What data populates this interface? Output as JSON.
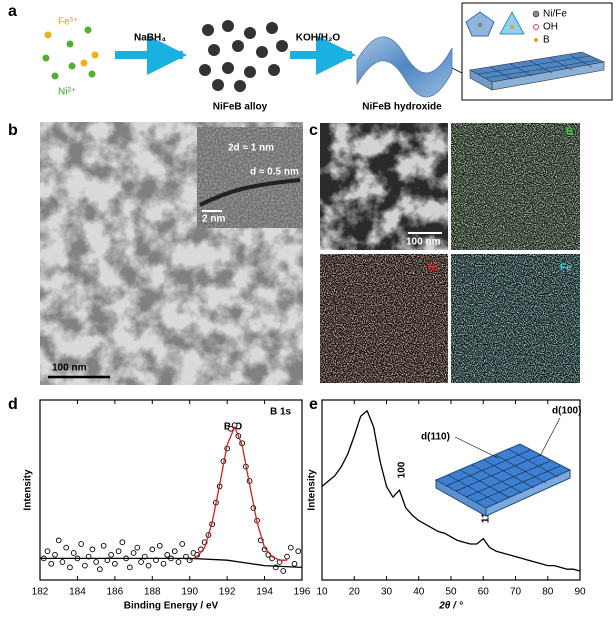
{
  "panel_a": {
    "label": "a",
    "ions": [
      "Fe³⁺",
      "Ni²⁺"
    ],
    "reagents": [
      "NaBH₄",
      "KOH/H₂O"
    ],
    "products": [
      "NiFeB alloy",
      "NiFeB hydroxide"
    ],
    "legend": [
      "Ni/Fe",
      "OH",
      "B"
    ]
  },
  "panel_b": {
    "label": "b",
    "inset_labels": [
      "2d ≈ 1 nm",
      "d ≈ 0.5 nm"
    ],
    "scale_bars": [
      "2 nm",
      "100 nm"
    ]
  },
  "panel_c": {
    "label": "c",
    "scale_bar": "100 nm",
    "maps": [
      "B",
      "Ni",
      "Fe"
    ]
  },
  "panel_labels": [
    "d",
    "e"
  ],
  "chart_data": [
    {
      "type": "scatter",
      "title": "B 1s",
      "x_label": "Binding Energy / eV",
      "y_label": "Intensity",
      "annotations": [
        "B-O"
      ],
      "xlim": [
        182,
        196
      ],
      "xticks": [
        182,
        184,
        186,
        188,
        190,
        192,
        194,
        196
      ],
      "ylim": [
        0,
        1
      ],
      "series": [
        {
          "type": "scatter",
          "color": "#000000",
          "x": [
            182.2,
            182.4,
            182.6,
            182.8,
            183.0,
            183.2,
            183.4,
            183.6,
            183.8,
            184.0,
            184.2,
            184.4,
            184.6,
            184.8,
            185.0,
            185.2,
            185.4,
            185.6,
            185.8,
            186.0,
            186.2,
            186.4,
            186.6,
            186.8,
            187.0,
            187.2,
            187.4,
            187.6,
            187.8,
            188.0,
            188.2,
            188.4,
            188.6,
            188.8,
            189.0,
            189.2,
            189.4,
            189.6,
            189.8,
            190.0,
            190.2,
            190.4,
            190.6,
            190.8,
            191.0,
            191.2,
            191.4,
            191.6,
            191.8,
            192.0,
            192.2,
            192.4,
            192.6,
            192.8,
            193.0,
            193.2,
            193.4,
            193.6,
            193.8,
            194.0,
            194.2,
            194.4,
            194.6,
            194.8,
            195.0,
            195.2,
            195.4,
            195.6,
            195.8
          ],
          "values": [
            0.12,
            0.16,
            0.09,
            0.14,
            0.22,
            0.1,
            0.18,
            0.07,
            0.15,
            0.12,
            0.2,
            0.08,
            0.13,
            0.17,
            0.1,
            0.06,
            0.19,
            0.11,
            0.14,
            0.09,
            0.16,
            0.21,
            0.12,
            0.07,
            0.15,
            0.18,
            0.1,
            0.13,
            0.08,
            0.17,
            0.11,
            0.19,
            0.09,
            0.14,
            0.12,
            0.16,
            0.1,
            0.2,
            0.13,
            0.11,
            0.15,
            0.14,
            0.17,
            0.21,
            0.25,
            0.31,
            0.43,
            0.52,
            0.66,
            0.73,
            0.84,
            0.86,
            0.8,
            0.76,
            0.63,
            0.55,
            0.4,
            0.33,
            0.22,
            0.17,
            0.14,
            0.12,
            0.07,
            0.1,
            0.05,
            0.13,
            0.18,
            0.09,
            0.16
          ]
        },
        {
          "type": "line",
          "color": "#d62020",
          "x": [
            190.0,
            190.4,
            190.8,
            191.2,
            191.6,
            192.0,
            192.4,
            192.8,
            193.2,
            193.6,
            194.0,
            194.4,
            194.8,
            195.2
          ],
          "values": [
            0.11,
            0.13,
            0.18,
            0.32,
            0.53,
            0.75,
            0.85,
            0.75,
            0.53,
            0.32,
            0.18,
            0.13,
            0.11,
            0.11
          ]
        },
        {
          "type": "line",
          "color": "#000000",
          "x": [
            182,
            186,
            190,
            192,
            194,
            196
          ],
          "values": [
            0.12,
            0.12,
            0.12,
            0.11,
            0.08,
            0.07
          ]
        }
      ]
    },
    {
      "type": "line",
      "x_label": "2θ / °",
      "y_label": "Intensity",
      "annotations": [
        "100",
        "110",
        "d(110)",
        "d(100)"
      ],
      "xlim": [
        10,
        90
      ],
      "xticks": [
        10,
        20,
        30,
        40,
        50,
        60,
        70,
        80,
        90
      ],
      "ylim": [
        0,
        1
      ],
      "series": [
        {
          "type": "line",
          "color": "#000000",
          "x": [
            10,
            12,
            14,
            16,
            18,
            20,
            22,
            24,
            26,
            28,
            30,
            32,
            34,
            36,
            38,
            40,
            42,
            44,
            46,
            48,
            50,
            52,
            54,
            56,
            58,
            60,
            62,
            64,
            66,
            68,
            70,
            72,
            74,
            76,
            78,
            80,
            82,
            84,
            86,
            88,
            90
          ],
          "values": [
            0.52,
            0.55,
            0.58,
            0.63,
            0.7,
            0.8,
            0.91,
            0.94,
            0.85,
            0.66,
            0.52,
            0.46,
            0.5,
            0.4,
            0.36,
            0.33,
            0.31,
            0.29,
            0.27,
            0.26,
            0.24,
            0.22,
            0.21,
            0.2,
            0.2,
            0.23,
            0.18,
            0.16,
            0.15,
            0.14,
            0.13,
            0.12,
            0.11,
            0.1,
            0.09,
            0.08,
            0.08,
            0.07,
            0.06,
            0.06,
            0.05
          ]
        }
      ]
    }
  ]
}
